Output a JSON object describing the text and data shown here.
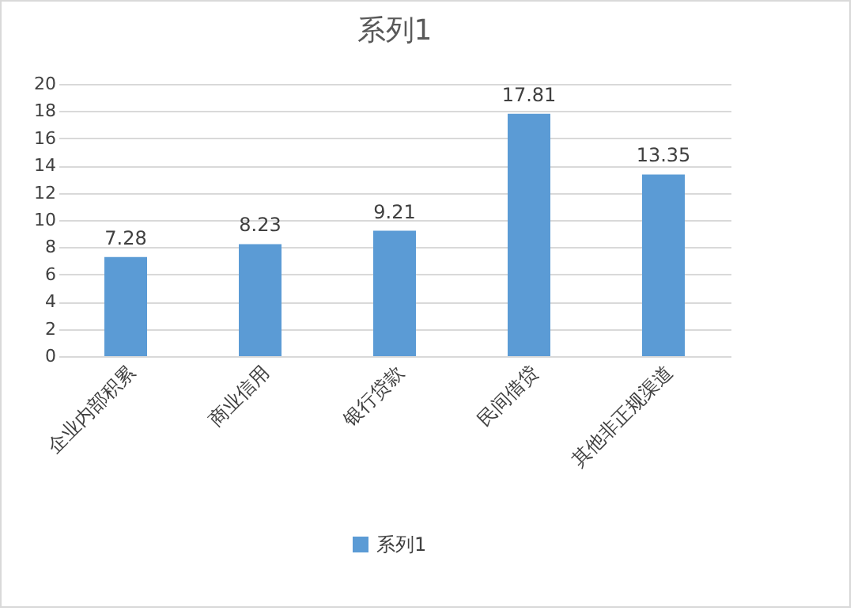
{
  "chart_data": {
    "type": "bar",
    "title": "系列1",
    "categories": [
      "企业内部积累",
      "商业信用",
      "银行贷款",
      "民间借贷",
      "其他非正规渠道"
    ],
    "series": [
      {
        "name": "系列1",
        "color": "#5b9bd5",
        "values": [
          7.28,
          8.23,
          9.21,
          17.81,
          13.35
        ]
      }
    ],
    "ylim": [
      0,
      20
    ],
    "yticks": [
      0,
      2,
      4,
      6,
      8,
      10,
      12,
      14,
      16,
      18,
      20
    ],
    "grid": "y",
    "legend": "bottom",
    "data_labels": true
  }
}
